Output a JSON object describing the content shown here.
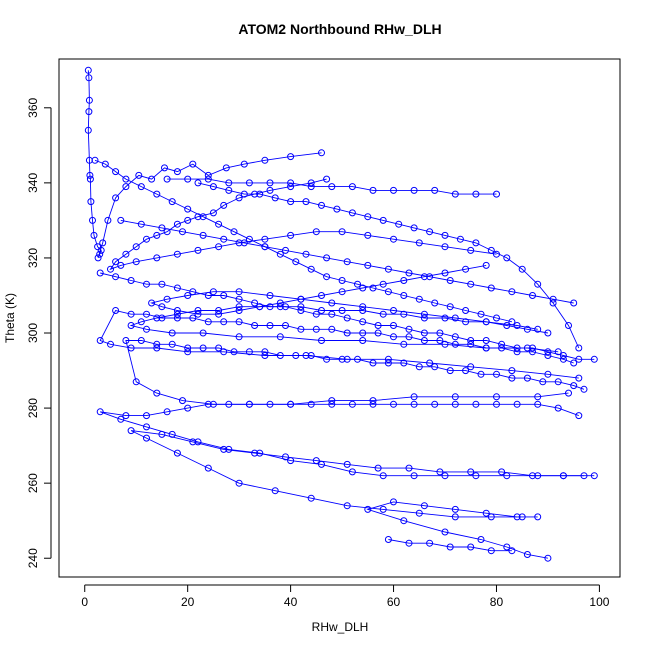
{
  "chart_data": {
    "type": "line",
    "title": "ATOM2 Northbound RHw_DLH",
    "xlabel": "RHw_DLH",
    "ylabel": "Theta (K)",
    "xlim": [
      -5,
      104
    ],
    "ylim": [
      235,
      373
    ],
    "x_ticks": [
      "0",
      "20",
      "40",
      "60",
      "80",
      "100"
    ],
    "x_tick_values": [
      0,
      20,
      40,
      60,
      80,
      100
    ],
    "y_ticks": [
      "240",
      "260",
      "280",
      "300",
      "320",
      "340",
      "360"
    ],
    "y_tick_values": [
      240,
      260,
      280,
      300,
      320,
      340,
      360
    ],
    "grid": false,
    "legend": "none",
    "series_color": "#0000ff",
    "marker": "open-circle",
    "series": [
      {
        "x": [
          0.7,
          0.8,
          0.9,
          0.8,
          0.7,
          0.9,
          1.0,
          1.1,
          1.2,
          1.5,
          1.8,
          2.5,
          3.2,
          2.9,
          2.6,
          3.5,
          4.5,
          6.0,
          8.0,
          10.5,
          13.0,
          15.5,
          18.0,
          21.0,
          24.0,
          27.5,
          31.0,
          35.0,
          40.0,
          46.0
        ],
        "y": [
          370,
          368,
          362,
          359,
          354,
          346,
          342,
          341,
          335,
          330,
          326,
          323,
          322,
          321,
          320,
          324,
          330,
          336,
          339,
          342,
          341,
          344,
          343,
          345,
          342,
          344,
          345,
          346,
          347,
          348
        ]
      },
      {
        "x": [
          47,
          44,
          40,
          36,
          33,
          30,
          27,
          25,
          22,
          20,
          18,
          16,
          14,
          12,
          10,
          8,
          6,
          5,
          7,
          10,
          14,
          18,
          22,
          26,
          30,
          35,
          40,
          45,
          50,
          55,
          60,
          65,
          70,
          75,
          80
        ],
        "y": [
          341,
          340,
          339,
          338,
          337,
          336,
          334,
          332,
          331,
          330,
          329,
          327,
          326,
          325,
          323,
          321,
          319,
          317,
          318,
          319,
          320,
          321,
          322,
          323,
          324,
          325,
          326,
          327,
          327,
          326,
          325,
          324,
          323,
          322,
          321
        ]
      },
      {
        "x": [
          78,
          74,
          70,
          66,
          62,
          58,
          54,
          50,
          46,
          42,
          38,
          34,
          30,
          26,
          22,
          18,
          15,
          13,
          16,
          20,
          25,
          30,
          36,
          42,
          48,
          54,
          60,
          66,
          72,
          78,
          84,
          88
        ],
        "y": [
          318,
          317,
          316,
          315,
          314,
          313,
          312,
          311,
          310,
          309,
          308,
          307,
          306,
          305,
          305,
          306,
          307,
          308,
          309,
          310,
          311,
          311,
          310,
          309,
          308,
          307,
          306,
          305,
          304,
          303,
          302,
          301
        ]
      },
      {
        "x": [
          90,
          86,
          82,
          78,
          74,
          70,
          66,
          62,
          58,
          54,
          50,
          46,
          42,
          38,
          34,
          30,
          26,
          22,
          18,
          14,
          11,
          9,
          12,
          17,
          23,
          30,
          38,
          46,
          54,
          62,
          70,
          78,
          86,
          92
        ],
        "y": [
          300,
          301,
          302,
          303,
          303,
          304,
          304,
          305,
          305,
          306,
          306,
          306,
          307,
          307,
          307,
          307,
          306,
          306,
          305,
          304,
          303,
          302,
          301,
          300,
          300,
          299,
          299,
          298,
          298,
          297,
          297,
          296,
          296,
          295
        ]
      },
      {
        "x": [
          95,
          93,
          90,
          87,
          84,
          81,
          78,
          75,
          72,
          69,
          66,
          63,
          60,
          57,
          54,
          51,
          48,
          45,
          42,
          39,
          36,
          33,
          30,
          27,
          24,
          21,
          18,
          15,
          12,
          9,
          6,
          3,
          5,
          9,
          14,
          20,
          27,
          35,
          43,
          51,
          59,
          67,
          75,
          83,
          90,
          96
        ],
        "y": [
          292,
          293,
          294,
          295,
          295,
          296,
          296,
          297,
          297,
          298,
          298,
          299,
          299,
          300,
          300,
          300,
          301,
          301,
          301,
          302,
          302,
          302,
          303,
          303,
          303,
          304,
          304,
          304,
          305,
          305,
          306,
          298,
          297,
          296,
          296,
          295,
          295,
          294,
          294,
          293,
          293,
          292,
          291,
          290,
          289,
          288
        ]
      },
      {
        "x": [
          97,
          95,
          92,
          89,
          86,
          83,
          80,
          77,
          74,
          71,
          68,
          65,
          62,
          59,
          56,
          53,
          50,
          47,
          44,
          41,
          38,
          35,
          32,
          29,
          26,
          23,
          20,
          17,
          14,
          11,
          8,
          10,
          14,
          19,
          25,
          32,
          40,
          48,
          56,
          64,
          72,
          80,
          88,
          94
        ],
        "y": [
          285,
          286,
          287,
          287,
          288,
          288,
          289,
          289,
          290,
          290,
          291,
          291,
          292,
          292,
          292,
          293,
          293,
          293,
          294,
          294,
          294,
          295,
          295,
          295,
          296,
          296,
          296,
          297,
          297,
          298,
          298,
          287,
          284,
          282,
          281,
          281,
          281,
          282,
          282,
          283,
          283,
          283,
          283,
          284
        ]
      },
      {
        "x": [
          96,
          92,
          88,
          84,
          80,
          76,
          72,
          68,
          64,
          60,
          56,
          52,
          48,
          44,
          40,
          36,
          32,
          28,
          24,
          20,
          16,
          12,
          8,
          3,
          7,
          12,
          17,
          22,
          28,
          34,
          40,
          46,
          52,
          58,
          64,
          70,
          76,
          82,
          88,
          93,
          97
        ],
        "y": [
          278,
          280,
          281,
          281,
          281,
          281,
          281,
          281,
          281,
          281,
          281,
          281,
          281,
          281,
          281,
          281,
          281,
          281,
          281,
          280,
          279,
          278,
          278,
          279,
          277,
          275,
          273,
          271,
          269,
          268,
          266,
          265,
          263,
          262,
          262,
          262,
          262,
          262,
          262,
          262,
          262
        ]
      },
      {
        "x": [
          99,
          93,
          87,
          81,
          75,
          69,
          63,
          57,
          51,
          45,
          39,
          33,
          27,
          21,
          15,
          9,
          12,
          18,
          24,
          30,
          37,
          44,
          51,
          58,
          65,
          72,
          79,
          85,
          88
        ],
        "y": [
          262,
          262,
          262,
          263,
          263,
          263,
          264,
          264,
          265,
          266,
          267,
          268,
          269,
          271,
          273,
          274,
          272,
          268,
          264,
          260,
          258,
          256,
          254,
          253,
          252,
          251,
          251,
          251,
          251
        ]
      },
      {
        "x": [
          84,
          78,
          72,
          66,
          60,
          55,
          62,
          70,
          77,
          82,
          86,
          90
        ],
        "y": [
          251,
          252,
          253,
          254,
          255,
          253,
          250,
          247,
          245,
          243,
          241,
          240
        ]
      },
      {
        "x": [
          59,
          63,
          67,
          71,
          75,
          79,
          83
        ],
        "y": [
          245,
          244,
          244,
          243,
          243,
          242,
          242
        ]
      },
      {
        "x": [
          22,
          25,
          28,
          31,
          34,
          37,
          40,
          43,
          46,
          49,
          52,
          55,
          58,
          61,
          64,
          67,
          70,
          73,
          76,
          79,
          82,
          85,
          88,
          91,
          94,
          96
        ],
        "y": [
          340,
          339,
          338,
          337,
          337,
          336,
          335,
          335,
          334,
          333,
          332,
          331,
          330,
          329,
          328,
          327,
          326,
          325,
          324,
          322,
          320,
          317,
          313,
          308,
          302,
          296
        ]
      },
      {
        "x": [
          2,
          4,
          6,
          8,
          11,
          14,
          17,
          20,
          23,
          26,
          29,
          32,
          35,
          38,
          41,
          44,
          47,
          50,
          53,
          56,
          59,
          62,
          65,
          68,
          71,
          74,
          77,
          80,
          83
        ],
        "y": [
          346,
          345,
          343,
          341,
          339,
          337,
          335,
          333,
          331,
          329,
          327,
          325,
          323,
          321,
          319,
          317,
          315,
          314,
          313,
          312,
          311,
          310,
          309,
          308,
          307,
          306,
          305,
          304,
          303
        ]
      },
      {
        "x": [
          16,
          20,
          24,
          28,
          32,
          36,
          40,
          44,
          48,
          52,
          56,
          60,
          64,
          68,
          72,
          76,
          80
        ],
        "y": [
          341,
          341,
          341,
          340,
          340,
          340,
          340,
          339,
          339,
          339,
          338,
          338,
          338,
          338,
          337,
          337,
          337
        ]
      },
      {
        "x": [
          3,
          6,
          9,
          12,
          15,
          18,
          21,
          24,
          27,
          30,
          33,
          36,
          39,
          42,
          45,
          48,
          51,
          54,
          57,
          60,
          63,
          66,
          69,
          72,
          75,
          78,
          81,
          84,
          87,
          90,
          93,
          96,
          99
        ],
        "y": [
          316,
          315,
          314,
          313,
          313,
          312,
          311,
          310,
          310,
          309,
          308,
          307,
          307,
          306,
          305,
          305,
          304,
          303,
          302,
          302,
          301,
          300,
          300,
          299,
          298,
          298,
          297,
          296,
          296,
          295,
          294,
          293,
          293
        ]
      },
      {
        "x": [
          7,
          11,
          15,
          19,
          23,
          27,
          31,
          35,
          39,
          43,
          47,
          51,
          55,
          59,
          63,
          67,
          71,
          75,
          79,
          83,
          87,
          91,
          95
        ],
        "y": [
          330,
          329,
          328,
          327,
          326,
          325,
          324,
          323,
          322,
          321,
          320,
          319,
          318,
          317,
          316,
          315,
          314,
          313,
          312,
          311,
          310,
          309,
          308
        ]
      }
    ]
  }
}
